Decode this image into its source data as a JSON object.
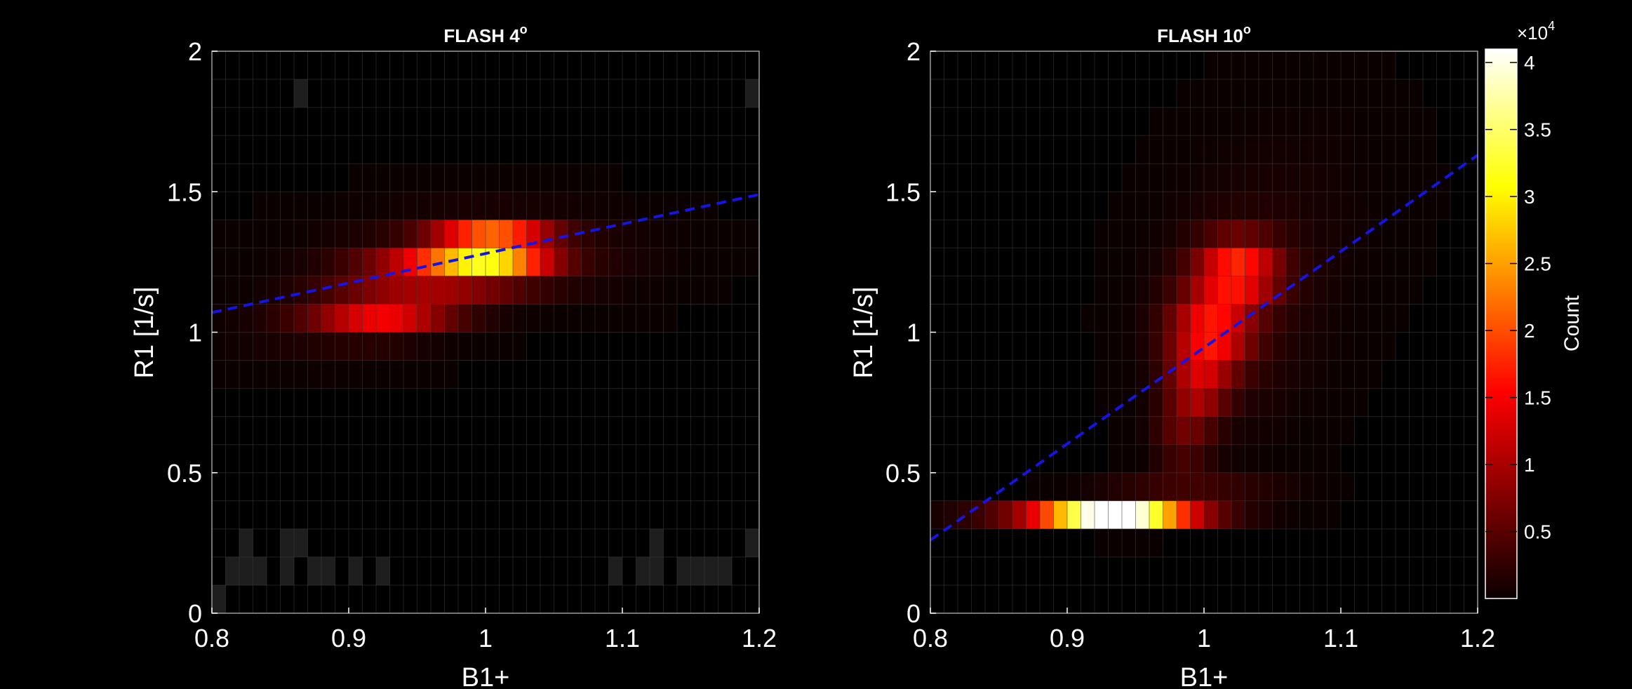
{
  "figure": {
    "background": "#000000",
    "line_color": "#1414e6",
    "colormap": "hot",
    "colorbar": {
      "label": "Count",
      "exponent_text": "×10",
      "exponent_power": "4",
      "ticks": [
        0.5,
        1,
        1.5,
        2,
        2.5,
        3,
        3.5,
        4
      ],
      "tick_labels": [
        "0.5",
        "1",
        "1.5",
        "2",
        "2.5",
        "3",
        "3.5",
        "4"
      ],
      "range": [
        0,
        41000
      ]
    }
  },
  "chart_data": [
    {
      "type": "heatmap",
      "title": "FLASH 4",
      "title_superscript": "o",
      "xlabel": "B1+",
      "ylabel": "R1 [1/s]",
      "xlim": [
        0.8,
        1.2
      ],
      "ylim": [
        0,
        2
      ],
      "xticks": [
        0.8,
        0.9,
        1,
        1.1,
        1.2
      ],
      "xtick_labels": [
        "0.8",
        "0.9",
        "1",
        "1.1",
        "1.2"
      ],
      "yticks": [
        0,
        0.5,
        1,
        1.5,
        2
      ],
      "ytick_labels": [
        "0",
        "0.5",
        "1",
        "1.5",
        "2"
      ],
      "grid": true,
      "bins": {
        "x_count": 40,
        "y_count": 20
      },
      "blobs": [
        {
          "x": 1.005,
          "y": 1.3,
          "sx": 0.028,
          "sy": 0.04,
          "amp": 40000
        },
        {
          "x": 0.975,
          "y": 1.22,
          "sx": 0.04,
          "sy": 0.05,
          "amp": 16000
        },
        {
          "x": 0.925,
          "y": 1.07,
          "sx": 0.035,
          "sy": 0.05,
          "amp": 14000
        },
        {
          "x": 1.0,
          "y": 1.28,
          "sx": 0.09,
          "sy": 0.14,
          "amp": 3000
        },
        {
          "x": 0.88,
          "y": 1.0,
          "sx": 0.06,
          "sy": 0.12,
          "amp": 1800
        }
      ],
      "sparse_cells": [
        {
          "x": 0.87,
          "y": 1.9
        },
        {
          "x": 1.195,
          "y": 1.85
        },
        {
          "x": 0.805,
          "y": 0.05
        },
        {
          "x": 0.815,
          "y": 0.15
        },
        {
          "x": 0.825,
          "y": 0.15
        },
        {
          "x": 0.825,
          "y": 0.25
        },
        {
          "x": 0.835,
          "y": 0.15
        },
        {
          "x": 0.855,
          "y": 0.15
        },
        {
          "x": 0.855,
          "y": 0.25
        },
        {
          "x": 0.865,
          "y": 0.25
        },
        {
          "x": 0.875,
          "y": 0.15
        },
        {
          "x": 0.885,
          "y": 0.15
        },
        {
          "x": 0.905,
          "y": 0.15
        },
        {
          "x": 0.925,
          "y": 0.15
        },
        {
          "x": 1.095,
          "y": 0.15
        },
        {
          "x": 1.115,
          "y": 0.15
        },
        {
          "x": 1.125,
          "y": 0.15
        },
        {
          "x": 1.125,
          "y": 0.25
        },
        {
          "x": 1.145,
          "y": 0.15
        },
        {
          "x": 1.155,
          "y": 0.15
        },
        {
          "x": 1.165,
          "y": 0.15
        },
        {
          "x": 1.175,
          "y": 0.15
        },
        {
          "x": 1.195,
          "y": 0.25
        }
      ],
      "fit_line": {
        "x": [
          0.8,
          1.2
        ],
        "y": [
          1.07,
          1.49
        ],
        "style": "dashed"
      }
    },
    {
      "type": "heatmap",
      "title": "FLASH 10",
      "title_superscript": "o",
      "xlabel": "B1+",
      "ylabel": "R1 [1/s]",
      "xlim": [
        0.8,
        1.2
      ],
      "ylim": [
        0,
        2
      ],
      "xticks": [
        0.8,
        0.9,
        1,
        1.1,
        1.2
      ],
      "xtick_labels": [
        "0.8",
        "0.9",
        "1",
        "1.1",
        "1.2"
      ],
      "yticks": [
        0,
        0.5,
        1,
        1.5,
        2
      ],
      "ytick_labels": [
        "0",
        "0.5",
        "1",
        "1.5",
        "2"
      ],
      "grid": true,
      "bins": {
        "x_count": 40,
        "y_count": 20
      },
      "blobs": [
        {
          "x": 0.935,
          "y": 0.35,
          "sx": 0.035,
          "sy": 0.03,
          "amp": 41000
        },
        {
          "x": 0.9,
          "y": 0.35,
          "sx": 0.06,
          "sy": 0.035,
          "amp": 5000
        },
        {
          "x": 1.025,
          "y": 1.22,
          "sx": 0.02,
          "sy": 0.08,
          "amp": 16000
        },
        {
          "x": 1.005,
          "y": 1.0,
          "sx": 0.02,
          "sy": 0.1,
          "amp": 15000
        },
        {
          "x": 0.995,
          "y": 0.8,
          "sx": 0.015,
          "sy": 0.08,
          "amp": 9000
        },
        {
          "x": 0.985,
          "y": 0.62,
          "sx": 0.015,
          "sy": 0.08,
          "amp": 5000
        },
        {
          "x": 1.02,
          "y": 1.05,
          "sx": 0.05,
          "sy": 0.35,
          "amp": 2200
        },
        {
          "x": 1.08,
          "y": 1.5,
          "sx": 0.06,
          "sy": 0.35,
          "amp": 900
        },
        {
          "x": 0.99,
          "y": 0.42,
          "sx": 0.05,
          "sy": 0.05,
          "amp": 3500
        }
      ],
      "sparse_cells": [],
      "fit_line": {
        "x": [
          0.8,
          1.2
        ],
        "y": [
          0.26,
          1.63
        ],
        "style": "dashed"
      }
    }
  ]
}
